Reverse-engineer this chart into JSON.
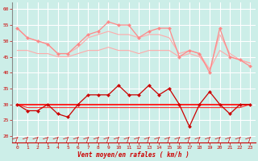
{
  "x": [
    0,
    1,
    2,
    3,
    4,
    5,
    6,
    7,
    8,
    9,
    10,
    11,
    12,
    13,
    14,
    15,
    16,
    17,
    18,
    19,
    20,
    21,
    22,
    23
  ],
  "rafales_top": [
    54,
    51,
    50,
    49,
    46,
    46,
    49,
    52,
    53,
    56,
    55,
    55,
    51,
    53,
    54,
    54,
    45,
    47,
    46,
    40,
    54,
    45,
    44,
    42
  ],
  "rafales_upper": [
    54,
    51,
    50,
    49,
    46,
    46,
    48,
    51,
    52,
    53,
    52,
    52,
    51,
    52,
    52,
    51,
    46,
    47,
    46,
    41,
    52,
    46,
    44,
    43
  ],
  "rafales_lower": [
    47,
    47,
    46,
    46,
    45,
    45,
    46,
    47,
    47,
    48,
    47,
    47,
    46,
    47,
    47,
    47,
    45,
    46,
    45,
    41,
    47,
    45,
    44,
    43
  ],
  "vent_top": [
    30,
    28,
    28,
    30,
    27,
    26,
    30,
    33,
    33,
    33,
    36,
    33,
    33,
    36,
    33,
    35,
    30,
    23,
    30,
    34,
    30,
    27,
    30,
    30
  ],
  "vent_upper": [
    30,
    30,
    30,
    30,
    30,
    30,
    30,
    30,
    30,
    30,
    30,
    30,
    30,
    30,
    30,
    30,
    30,
    30,
    30,
    30,
    30,
    30,
    30,
    30
  ],
  "vent_lower": [
    30,
    29,
    29,
    29,
    29,
    29,
    29,
    29,
    29,
    29,
    29,
    29,
    29,
    29,
    29,
    29,
    29,
    29,
    29,
    29,
    29,
    29,
    29,
    30
  ],
  "xlabel": "Vent moyen/en rafales ( km/h )",
  "ylim": [
    18,
    62
  ],
  "yticks": [
    20,
    25,
    30,
    35,
    40,
    45,
    50,
    55,
    60
  ],
  "xticks": [
    0,
    1,
    2,
    3,
    4,
    5,
    6,
    7,
    8,
    9,
    10,
    11,
    12,
    13,
    14,
    15,
    16,
    17,
    18,
    19,
    20,
    21,
    22,
    23
  ],
  "bg_color": "#cceee8",
  "grid_color": "#ffffff",
  "color_rafales_top": "#ff8888",
  "color_rafales_band": "#ffaaaa",
  "color_vent_top": "#cc0000",
  "color_vent_band_upper": "#ff0000",
  "color_vent_band_lower": "#ff3333"
}
